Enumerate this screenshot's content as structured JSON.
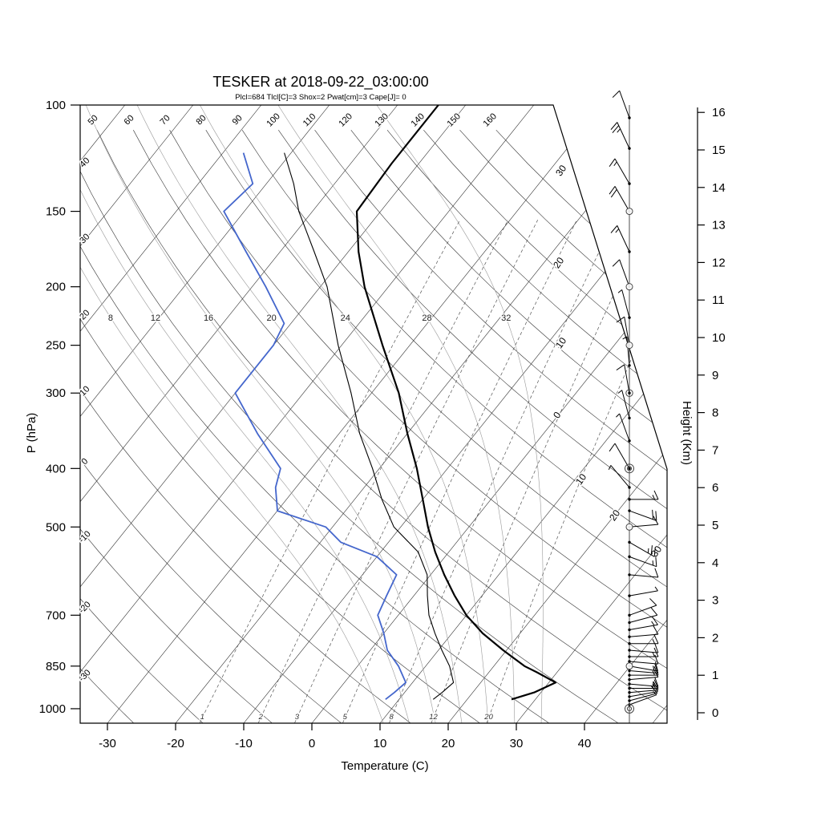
{
  "title": "TESKER at 2018-09-22_03:00:00",
  "params_line": "Plcl=684 Tlcl[C]=3 Shox=2 Pwat[cm]=3 Cape[J]= 0",
  "axes": {
    "pressure_label": "P (hPa)",
    "temperature_label": "Temperature (C)",
    "height_label": "Height (Km)",
    "pressure_ticks": [
      100,
      150,
      200,
      250,
      300,
      400,
      500,
      700,
      850,
      1000
    ],
    "temperature_ticks": [
      -30,
      -20,
      -10,
      0,
      10,
      20,
      30,
      40
    ],
    "height_ticks": [
      0,
      1,
      2,
      3,
      4,
      5,
      6,
      7,
      8,
      9,
      10,
      11,
      12,
      13,
      14,
      15,
      16
    ]
  },
  "chart_data": {
    "type": "skewt-log-p-sounding",
    "station": "TESKER",
    "datetime": "2018-09-22_03:00:00",
    "parameters": {
      "Plcl": 684,
      "Tlcl_C": 3,
      "Shox": 2,
      "Pwat_cm": 3,
      "Cape_J": 0
    },
    "pressure_range_hPa": [
      100,
      1055
    ],
    "isotherms_C": {
      "start": -120,
      "end": 50,
      "step": 10
    },
    "dry_adiabats_C": {
      "start": -30,
      "end": 160,
      "step": 10
    },
    "dry_adiabat_top_labels": [
      50,
      60,
      70,
      80,
      90,
      100,
      110,
      120,
      130,
      140,
      150,
      160
    ],
    "dry_adiabat_left_labels": [
      40,
      30,
      20,
      10,
      0,
      -10,
      -20,
      -30
    ],
    "moist_adiabats_C": [
      8,
      12,
      16,
      20,
      24,
      28,
      32
    ],
    "mixing_ratio_g_kg": [
      1,
      2,
      3,
      5,
      8,
      12,
      20
    ],
    "isotherm_edge_labels_upper": [
      "30",
      "20",
      "10",
      "0"
    ],
    "isotherm_edge_labels_lower": [
      "10",
      "20",
      "30"
    ],
    "temperature_profile": [
      {
        "p": 965,
        "t": 26.5
      },
      {
        "p": 940,
        "t": 29
      },
      {
        "p": 905,
        "t": 31
      },
      {
        "p": 870,
        "t": 27
      },
      {
        "p": 850,
        "t": 24.5
      },
      {
        "p": 800,
        "t": 19.5
      },
      {
        "p": 750,
        "t": 14.5
      },
      {
        "p": 700,
        "t": 10
      },
      {
        "p": 650,
        "t": 6
      },
      {
        "p": 600,
        "t": 2
      },
      {
        "p": 550,
        "t": -2
      },
      {
        "p": 500,
        "t": -6
      },
      {
        "p": 450,
        "t": -10
      },
      {
        "p": 400,
        "t": -14.5
      },
      {
        "p": 350,
        "t": -20
      },
      {
        "p": 300,
        "t": -26
      },
      {
        "p": 250,
        "t": -34
      },
      {
        "p": 200,
        "t": -43.5
      },
      {
        "p": 175,
        "t": -48.5
      },
      {
        "p": 150,
        "t": -53.5
      },
      {
        "p": 125,
        "t": -54
      },
      {
        "p": 100,
        "t": -54
      }
    ],
    "wetbulb_profile": [
      {
        "p": 965,
        "t": 15
      },
      {
        "p": 940,
        "t": 15.5
      },
      {
        "p": 905,
        "t": 16
      },
      {
        "p": 850,
        "t": 13.5
      },
      {
        "p": 800,
        "t": 10.5
      },
      {
        "p": 750,
        "t": 7.5
      },
      {
        "p": 700,
        "t": 4.5
      },
      {
        "p": 650,
        "t": 2
      },
      {
        "p": 600,
        "t": -0.5
      },
      {
        "p": 550,
        "t": -4.5
      },
      {
        "p": 500,
        "t": -11
      },
      {
        "p": 450,
        "t": -16
      },
      {
        "p": 400,
        "t": -21
      },
      {
        "p": 350,
        "t": -27
      },
      {
        "p": 300,
        "t": -33
      },
      {
        "p": 250,
        "t": -40.5
      },
      {
        "p": 200,
        "t": -49
      },
      {
        "p": 175,
        "t": -55
      },
      {
        "p": 150,
        "t": -62
      },
      {
        "p": 135,
        "t": -66
      },
      {
        "p": 120,
        "t": -71
      }
    ],
    "dewpoint_profile": [
      {
        "p": 965,
        "t": 8
      },
      {
        "p": 940,
        "t": 8.5
      },
      {
        "p": 905,
        "t": 9
      },
      {
        "p": 850,
        "t": 6
      },
      {
        "p": 800,
        "t": 2.5
      },
      {
        "p": 750,
        "t": 0
      },
      {
        "p": 700,
        "t": -3
      },
      {
        "p": 650,
        "t": -4
      },
      {
        "p": 600,
        "t": -5
      },
      {
        "p": 560,
        "t": -10
      },
      {
        "p": 530,
        "t": -17
      },
      {
        "p": 500,
        "t": -21
      },
      {
        "p": 470,
        "t": -30
      },
      {
        "p": 430,
        "t": -33
      },
      {
        "p": 400,
        "t": -34.5
      },
      {
        "p": 350,
        "t": -42
      },
      {
        "p": 300,
        "t": -50
      },
      {
        "p": 250,
        "t": -50
      },
      {
        "p": 230,
        "t": -51
      },
      {
        "p": 200,
        "t": -58
      },
      {
        "p": 175,
        "t": -65
      },
      {
        "p": 150,
        "t": -73
      },
      {
        "p": 135,
        "t": -72
      },
      {
        "p": 120,
        "t": -77
      }
    ],
    "wind_profile_kt": [
      {
        "p": 105,
        "spd": 10,
        "dir": 340
      },
      {
        "p": 118,
        "spd": 25,
        "dir": 335
      },
      {
        "p": 135,
        "spd": 15,
        "dir": 330
      },
      {
        "p": 150,
        "spd": 20,
        "dir": 330
      },
      {
        "p": 175,
        "spd": 15,
        "dir": 335
      },
      {
        "p": 200,
        "spd": 10,
        "dir": 340
      },
      {
        "p": 225,
        "spd": 5,
        "dir": 345
      },
      {
        "p": 250,
        "spd": 10,
        "dir": 350
      },
      {
        "p": 270,
        "spd": 5,
        "dir": 355
      },
      {
        "p": 300,
        "spd": 10,
        "dir": 350
      },
      {
        "p": 330,
        "spd": 5,
        "dir": 345
      },
      {
        "p": 360,
        "spd": 5,
        "dir": 340
      },
      {
        "p": 400,
        "spd": 10,
        "dir": 330
      },
      {
        "p": 430,
        "spd": 5,
        "dir": 320
      },
      {
        "p": 450,
        "spd": 15,
        "dir": 90
      },
      {
        "p": 470,
        "spd": 20,
        "dir": 110
      },
      {
        "p": 500,
        "spd": 10,
        "dir": 85
      },
      {
        "p": 530,
        "spd": 25,
        "dir": 120
      },
      {
        "p": 560,
        "spd": 15,
        "dir": 110
      },
      {
        "p": 600,
        "spd": 10,
        "dir": 95
      },
      {
        "p": 650,
        "spd": 5,
        "dir": 80
      },
      {
        "p": 700,
        "spd": 10,
        "dir": 70
      },
      {
        "p": 720,
        "spd": 10,
        "dir": 75
      },
      {
        "p": 740,
        "spd": 15,
        "dir": 80
      },
      {
        "p": 760,
        "spd": 10,
        "dir": 85
      },
      {
        "p": 780,
        "spd": 15,
        "dir": 90
      },
      {
        "p": 800,
        "spd": 10,
        "dir": 95
      },
      {
        "p": 820,
        "spd": 15,
        "dir": 90
      },
      {
        "p": 835,
        "spd": 10,
        "dir": 95
      },
      {
        "p": 850,
        "spd": 15,
        "dir": 100
      },
      {
        "p": 865,
        "spd": 10,
        "dir": 95
      },
      {
        "p": 880,
        "spd": 15,
        "dir": 90
      },
      {
        "p": 895,
        "spd": 10,
        "dir": 85
      },
      {
        "p": 910,
        "spd": 15,
        "dir": 95
      },
      {
        "p": 925,
        "spd": 10,
        "dir": 90
      },
      {
        "p": 940,
        "spd": 15,
        "dir": 85
      },
      {
        "p": 955,
        "spd": 10,
        "dir": 80
      },
      {
        "p": 970,
        "spd": 10,
        "dir": 75
      },
      {
        "p": 985,
        "spd": 5,
        "dir": 70
      }
    ],
    "level_markers": [
      {
        "p": 150,
        "type": "circle"
      },
      {
        "p": 200,
        "type": "circle"
      },
      {
        "p": 250,
        "type": "circle"
      },
      {
        "p": 300,
        "type": "circle-dot"
      },
      {
        "p": 400,
        "type": "double-circle"
      },
      {
        "p": 500,
        "type": "circle"
      },
      {
        "p": 850,
        "type": "circle"
      },
      {
        "p": 1000,
        "type": "double-circle"
      }
    ],
    "colors": {
      "temperature": "#000000",
      "wetbulb": "#000000",
      "dewpoint": "#4466cc",
      "params_text": "#cc4400",
      "grid": "#333333",
      "moist_adiabat": "#999999",
      "mixing_ratio": "#555555"
    }
  }
}
